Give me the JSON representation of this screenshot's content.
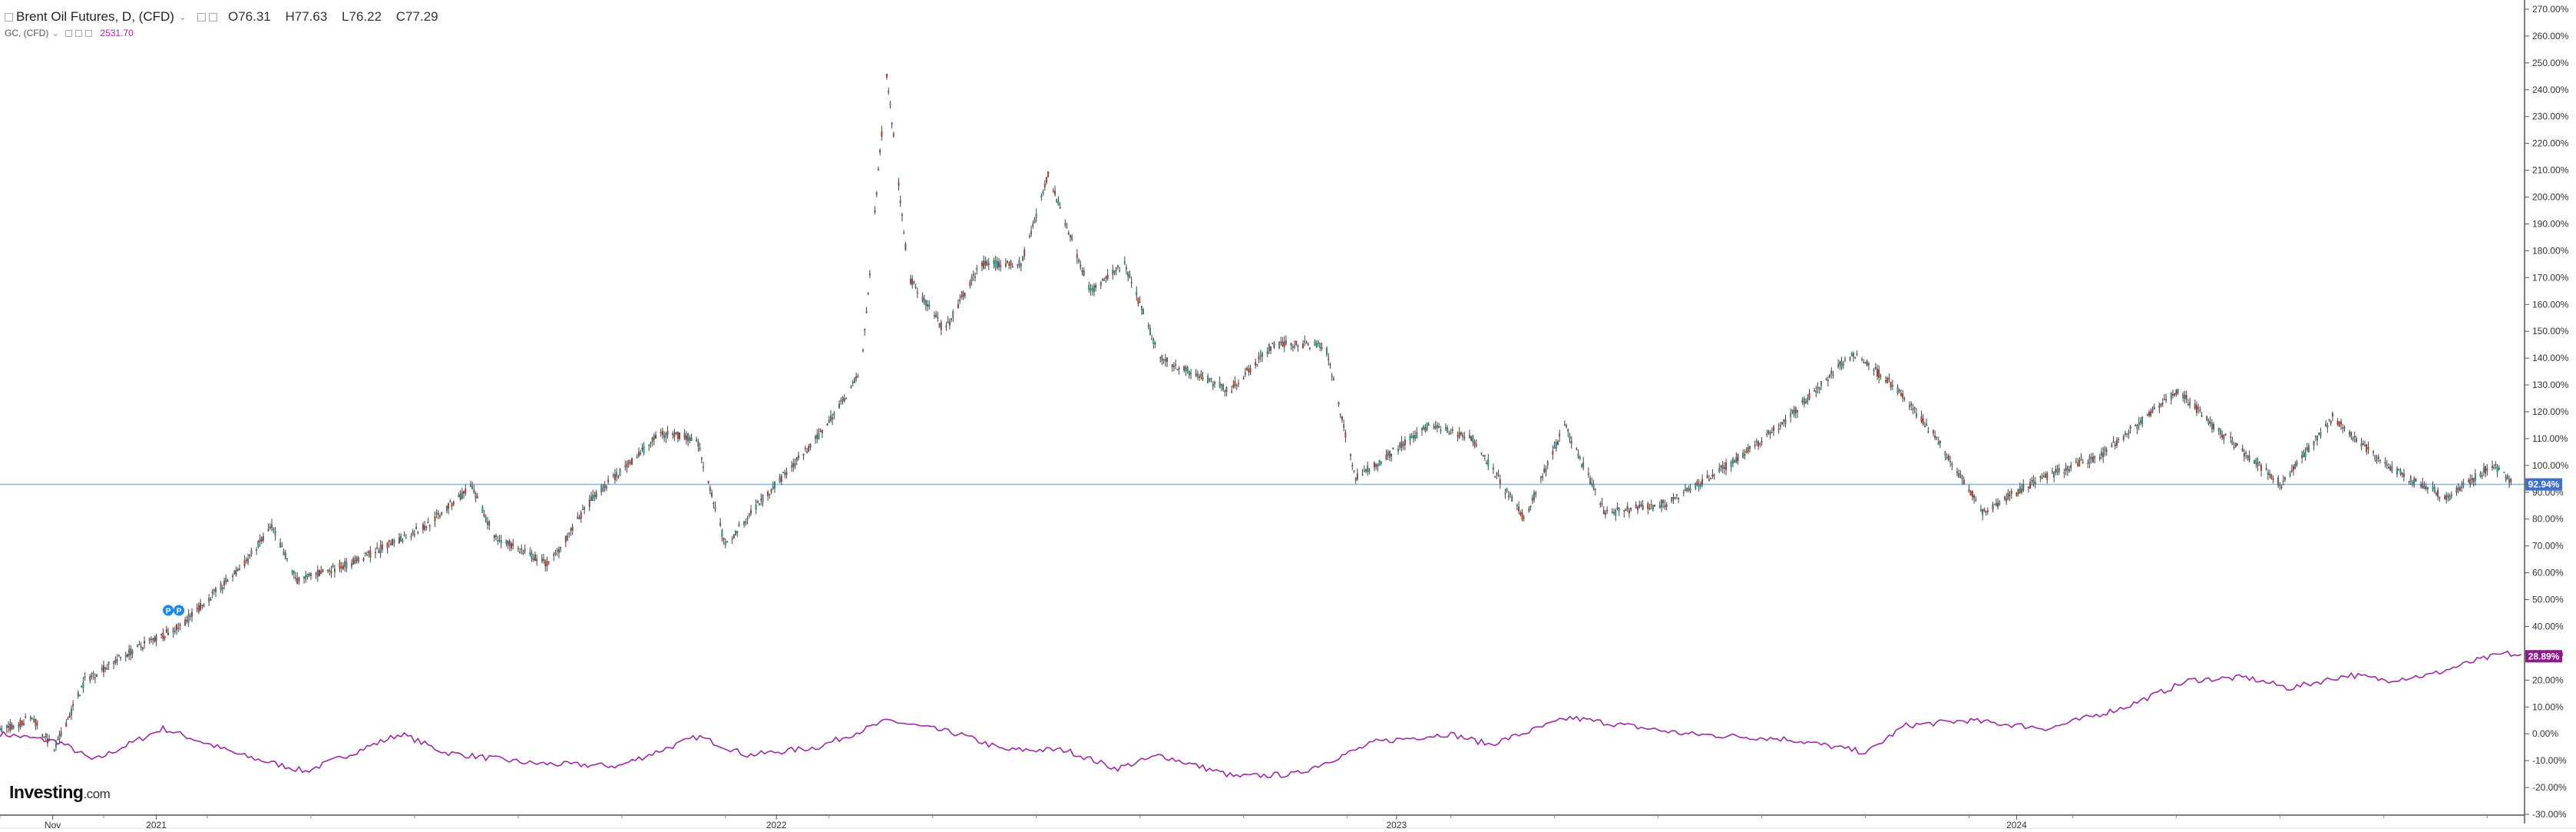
{
  "legend": {
    "main_title": "Brent Oil Futures, D, (CFD)",
    "ohlc": {
      "o": "O76.31",
      "h": "H77.63",
      "l": "L76.22",
      "c": "C77.29"
    },
    "secondary_title": "GC, (CFD)",
    "secondary_value": "2531.70"
  },
  "brand": {
    "name": "Investing",
    "domain": ".com"
  },
  "colors": {
    "up": "#26a69a",
    "down": "#c0392b",
    "gold_line": "#9b2c9f",
    "hline": "#90b4d6",
    "brent_label_bg": "#3d6fd1",
    "gold_label_bg": "#8e1b8a"
  },
  "chart_data": {
    "type": "line",
    "x_tick_labels": [
      "Nov",
      "2021",
      "2022",
      "2023",
      "2024"
    ],
    "x_ticks": [
      "2020-11-01",
      "2021-01-01",
      "2022-01-01",
      "2023-01-01",
      "2024-01-01"
    ],
    "y_axis": {
      "unit": "%",
      "ylim": [
        -30,
        270
      ],
      "tick_labels": [
        "-30.00%",
        "-20.00%",
        "-10.00%",
        "0.00%",
        "10.00%",
        "20.00%",
        "30.00%",
        "40.00%",
        "50.00%",
        "60.00%",
        "70.00%",
        "80.00%",
        "90.00%",
        "100.00%",
        "110.00%",
        "120.00%",
        "130.00%",
        "140.00%",
        "150.00%",
        "160.00%",
        "170.00%",
        "180.00%",
        "190.00%",
        "200.00%",
        "210.00%",
        "220.00%",
        "230.00%",
        "240.00%",
        "250.00%",
        "260.00%",
        "270.00%"
      ]
    },
    "series": [
      {
        "name": "Brent Oil Futures, D, (CFD)",
        "style": "candlestick",
        "last_label": "92.94%",
        "points": [
          [
            "2020-10-01",
            1
          ],
          [
            "2020-10-20",
            6
          ],
          [
            "2020-11-02",
            -6
          ],
          [
            "2020-11-20",
            20
          ],
          [
            "2020-12-15",
            30
          ],
          [
            "2021-01-15",
            40
          ],
          [
            "2021-02-20",
            62
          ],
          [
            "2021-03-10",
            77
          ],
          [
            "2021-03-25",
            57
          ],
          [
            "2021-05-01",
            65
          ],
          [
            "2021-06-10",
            78
          ],
          [
            "2021-07-05",
            92
          ],
          [
            "2021-07-20",
            73
          ],
          [
            "2021-08-20",
            63
          ],
          [
            "2021-09-15",
            88
          ],
          [
            "2021-10-25",
            112
          ],
          [
            "2021-11-15",
            110
          ],
          [
            "2021-12-02",
            70
          ],
          [
            "2021-12-20",
            85
          ],
          [
            "2022-01-25",
            110
          ],
          [
            "2022-02-20",
            135
          ],
          [
            "2022-03-07",
            246
          ],
          [
            "2022-03-20",
            170
          ],
          [
            "2022-04-10",
            150
          ],
          [
            "2022-05-01",
            175
          ],
          [
            "2022-05-25",
            175
          ],
          [
            "2022-06-10",
            208
          ],
          [
            "2022-07-05",
            165
          ],
          [
            "2022-07-25",
            175
          ],
          [
            "2022-08-15",
            140
          ],
          [
            "2022-09-25",
            128
          ],
          [
            "2022-10-20",
            145
          ],
          [
            "2022-11-20",
            145
          ],
          [
            "2022-12-08",
            95
          ],
          [
            "2023-01-20",
            115
          ],
          [
            "2023-02-15",
            110
          ],
          [
            "2023-03-17",
            80
          ],
          [
            "2023-04-10",
            115
          ],
          [
            "2023-05-04",
            82
          ],
          [
            "2023-06-10",
            86
          ],
          [
            "2023-07-15",
            100
          ],
          [
            "2023-08-15",
            115
          ],
          [
            "2023-09-27",
            142
          ],
          [
            "2023-10-20",
            130
          ],
          [
            "2023-11-15",
            110
          ],
          [
            "2023-12-12",
            83
          ],
          [
            "2024-01-15",
            95
          ],
          [
            "2024-02-20",
            104
          ],
          [
            "2024-04-05",
            128
          ],
          [
            "2024-04-25",
            115
          ],
          [
            "2024-06-05",
            93
          ],
          [
            "2024-07-05",
            118
          ],
          [
            "2024-08-05",
            100
          ],
          [
            "2024-09-10",
            88
          ],
          [
            "2024-10-07",
            100
          ],
          [
            "2024-10-20",
            93
          ]
        ]
      },
      {
        "name": "GC, (CFD)",
        "style": "line",
        "last_label": "28.89%",
        "points": [
          [
            "2020-10-01",
            0
          ],
          [
            "2020-11-05",
            -3
          ],
          [
            "2020-11-25",
            -10
          ],
          [
            "2021-01-05",
            2
          ],
          [
            "2021-02-20",
            -8
          ],
          [
            "2021-03-30",
            -14
          ],
          [
            "2021-05-25",
            0
          ],
          [
            "2021-06-20",
            -7
          ],
          [
            "2021-08-10",
            -11
          ],
          [
            "2021-09-30",
            -12
          ],
          [
            "2021-11-16",
            -1
          ],
          [
            "2021-12-15",
            -8
          ],
          [
            "2022-01-25",
            -5
          ],
          [
            "2022-03-08",
            5
          ],
          [
            "2022-04-18",
            0
          ],
          [
            "2022-05-15",
            -6
          ],
          [
            "2022-06-20",
            -6
          ],
          [
            "2022-07-20",
            -13
          ],
          [
            "2022-08-15",
            -8
          ],
          [
            "2022-09-28",
            -16
          ],
          [
            "2022-11-03",
            -15
          ],
          [
            "2022-12-20",
            -3
          ],
          [
            "2023-02-01",
            0
          ],
          [
            "2023-02-25",
            -4
          ],
          [
            "2023-04-13",
            6
          ],
          [
            "2023-06-20",
            0
          ],
          [
            "2023-08-20",
            -2
          ],
          [
            "2023-10-05",
            -7
          ],
          [
            "2023-10-27",
            3
          ],
          [
            "2023-12-03",
            5
          ],
          [
            "2024-01-20",
            2
          ],
          [
            "2024-03-05",
            10
          ],
          [
            "2024-04-12",
            20
          ],
          [
            "2024-05-15",
            21
          ],
          [
            "2024-06-10",
            17
          ],
          [
            "2024-07-15",
            22
          ],
          [
            "2024-08-05",
            20
          ],
          [
            "2024-09-01",
            22
          ],
          [
            "2024-09-26",
            27
          ],
          [
            "2024-10-15",
            30
          ],
          [
            "2024-10-25",
            28.9
          ]
        ]
      }
    ],
    "horizontal_line": 92.94,
    "grid": false,
    "annotations": [
      {
        "type": "markers",
        "date": "2021-01-08",
        "value": 46,
        "labels": [
          "P",
          "P"
        ]
      }
    ]
  }
}
